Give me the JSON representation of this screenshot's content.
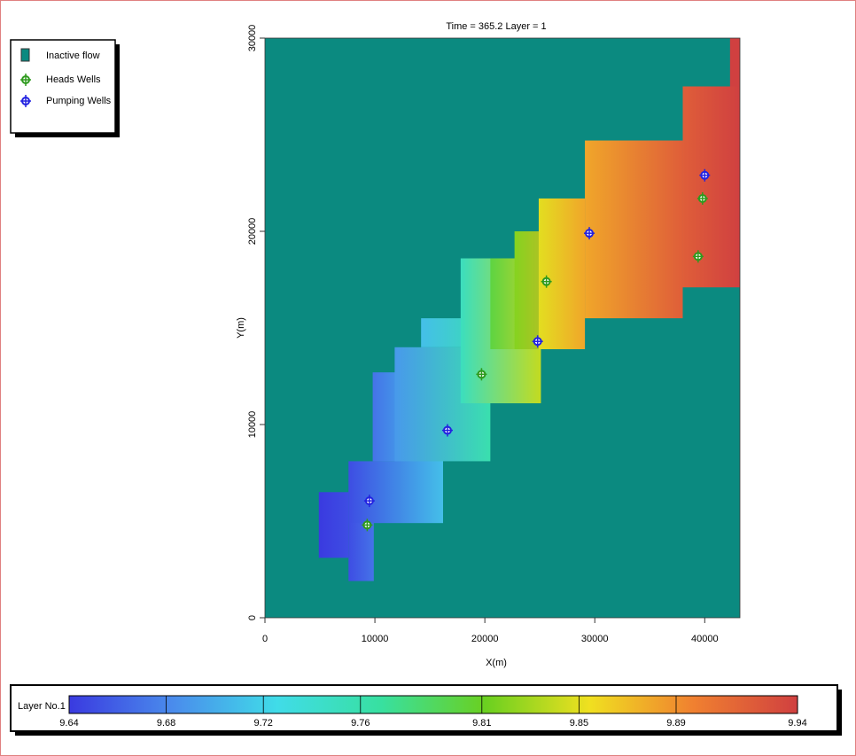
{
  "chart_data": {
    "type": "heatmap",
    "title": "Time = 365.2  Layer = 1",
    "x_label": "X(m)",
    "y_label": "Y(m)",
    "xlim": [
      0,
      43200
    ],
    "ylim": [
      0,
      30000
    ],
    "xticks": [
      0,
      10000,
      20000,
      30000,
      40000
    ],
    "yticks": [
      0,
      10000,
      20000,
      30000
    ],
    "inactive": {
      "name": "Inactive flow",
      "color": "#0b8a80"
    },
    "blocks": [
      {
        "x": [
          4900,
          7600
        ],
        "y": [
          3100,
          6500
        ],
        "head": [
          9.64,
          9.65
        ]
      },
      {
        "x": [
          7600,
          9900
        ],
        "y": [
          1900,
          6500
        ],
        "head": [
          9.65,
          9.67
        ]
      },
      {
        "x": [
          7600,
          16200
        ],
        "y": [
          4900,
          8100
        ],
        "head": [
          9.65,
          9.71
        ]
      },
      {
        "x": [
          9800,
          16200
        ],
        "y": [
          8100,
          12700
        ],
        "head": [
          9.67,
          9.72
        ]
      },
      {
        "x": [
          11800,
          20500
        ],
        "y": [
          8100,
          14000
        ],
        "head": [
          9.69,
          9.76
        ]
      },
      {
        "x": [
          14200,
          20500
        ],
        "y": [
          14000,
          15500
        ],
        "head": [
          9.71,
          9.76
        ]
      },
      {
        "x": [
          17800,
          25100
        ],
        "y": [
          11100,
          18600
        ],
        "head": [
          9.75,
          9.84
        ]
      },
      {
        "x": [
          20500,
          26700
        ],
        "y": [
          13900,
          18600
        ],
        "head": [
          9.8,
          9.86
        ]
      },
      {
        "x": [
          22700,
          29100
        ],
        "y": [
          13900,
          20000
        ],
        "head": [
          9.82,
          9.88
        ]
      },
      {
        "x": [
          24900,
          29100
        ],
        "y": [
          13900,
          21700
        ],
        "head": [
          9.85,
          9.88
        ]
      },
      {
        "x": [
          29100,
          38000
        ],
        "y": [
          15500,
          24700
        ],
        "head": [
          9.88,
          9.92
        ]
      },
      {
        "x": [
          38000,
          43200
        ],
        "y": [
          17100,
          27500
        ],
        "head": [
          9.92,
          9.94
        ]
      },
      {
        "x": [
          42300,
          43200
        ],
        "y": [
          27500,
          30000
        ],
        "head": [
          9.94,
          9.94
        ]
      }
    ],
    "series": [
      {
        "name": "Heads Wells",
        "color": "#2e9a1e",
        "x": [
          9300,
          19700,
          25600,
          39800,
          39400
        ],
        "y": [
          4800,
          12600,
          17400,
          21700,
          18700
        ]
      },
      {
        "name": "Pumping Wells",
        "color": "#2222e0",
        "x": [
          9500,
          16600,
          24800,
          29500,
          40000
        ],
        "y": [
          6050,
          9700,
          14300,
          19900,
          22900
        ]
      }
    ],
    "colorbar": {
      "label": "Layer No.1",
      "clim": [
        9.64,
        9.94
      ],
      "ticks": [
        9.64,
        9.68,
        9.72,
        9.76,
        9.81,
        9.85,
        9.89,
        9.94
      ],
      "colors": [
        "#3a3ae0",
        "#4a8cec",
        "#40dce8",
        "#38e0a0",
        "#6ad020",
        "#f0e020",
        "#f08030",
        "#d04040"
      ]
    }
  }
}
